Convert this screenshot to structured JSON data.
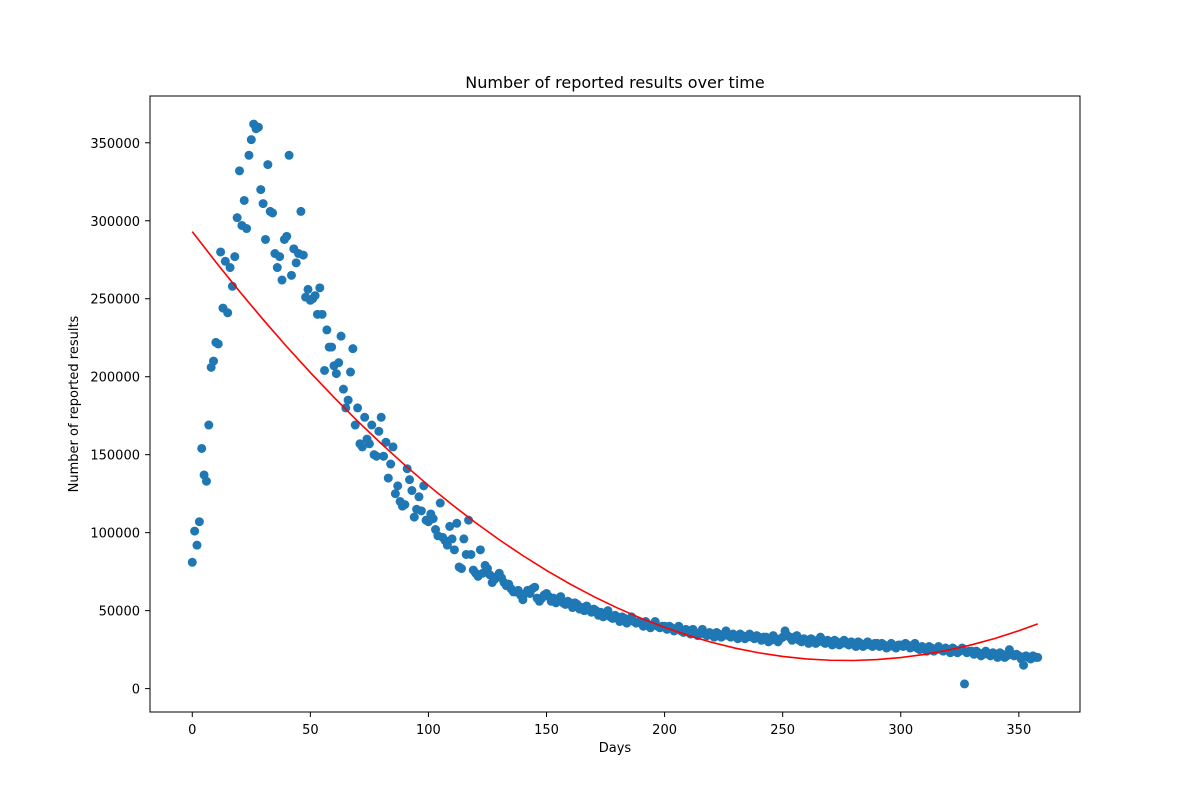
{
  "chart_data": {
    "type": "scatter",
    "title": "Number of reported results over time",
    "xlabel": "Days",
    "ylabel": "Number of reported results",
    "xlim": [
      -17.9,
      375.9
    ],
    "ylim": [
      -15000,
      380000
    ],
    "xticks": [
      0,
      50,
      100,
      150,
      200,
      250,
      300,
      350
    ],
    "yticks": [
      0,
      50000,
      100000,
      150000,
      200000,
      250000,
      300000,
      350000
    ],
    "series": [
      {
        "type": "scatter",
        "color": "#1f77b4",
        "x": [
          0,
          1,
          2,
          3,
          4,
          5,
          6,
          7,
          8,
          9,
          10,
          11,
          12,
          13,
          14,
          15,
          16,
          17,
          18,
          19,
          20,
          21,
          22,
          23,
          24,
          25,
          26,
          27,
          28,
          29,
          30,
          31,
          32,
          33,
          34,
          35,
          36,
          37,
          38,
          39,
          40,
          41,
          42,
          43,
          44,
          45,
          46,
          47,
          48,
          49,
          50,
          51,
          52,
          53,
          54,
          55,
          56,
          57,
          58,
          59,
          60,
          61,
          62,
          63,
          64,
          65,
          66,
          67,
          68,
          69,
          70,
          71,
          72,
          73,
          74,
          75,
          76,
          77,
          78,
          79,
          80,
          81,
          82,
          83,
          84,
          85,
          86,
          87,
          88,
          89,
          90,
          91,
          92,
          93,
          94,
          95,
          96,
          97,
          98,
          99,
          100,
          101,
          102,
          103,
          104,
          105,
          106,
          107,
          108,
          109,
          110,
          111,
          112,
          113,
          114,
          115,
          116,
          117,
          118,
          119,
          120,
          121,
          122,
          123,
          124,
          125,
          126,
          127,
          128,
          129,
          130,
          131,
          132,
          133,
          134,
          135,
          136,
          137,
          138,
          139,
          140,
          141,
          142,
          143,
          144,
          145,
          146,
          147,
          148,
          149,
          150,
          151,
          152,
          153,
          154,
          155,
          156,
          157,
          158,
          159,
          160,
          161,
          162,
          163,
          164,
          165,
          166,
          167,
          168,
          169,
          170,
          171,
          172,
          173,
          174,
          175,
          176,
          177,
          178,
          179,
          180,
          181,
          182,
          183,
          184,
          185,
          186,
          187,
          188,
          189,
          190,
          191,
          192,
          193,
          194,
          195,
          196,
          197,
          198,
          199,
          200,
          201,
          202,
          203,
          204,
          205,
          206,
          207,
          208,
          209,
          210,
          211,
          212,
          213,
          214,
          215,
          216,
          217,
          218,
          219,
          220,
          221,
          222,
          223,
          224,
          225,
          226,
          227,
          228,
          229,
          230,
          231,
          232,
          233,
          234,
          235,
          236,
          237,
          238,
          239,
          240,
          241,
          242,
          243,
          244,
          245,
          246,
          247,
          248,
          249,
          250,
          251,
          252,
          253,
          254,
          255,
          256,
          257,
          258,
          259,
          260,
          261,
          262,
          263,
          264,
          265,
          266,
          267,
          268,
          269,
          270,
          271,
          272,
          273,
          274,
          275,
          276,
          277,
          278,
          279,
          280,
          281,
          282,
          283,
          284,
          285,
          286,
          287,
          288,
          289,
          290,
          291,
          292,
          293,
          294,
          295,
          296,
          297,
          298,
          299,
          300,
          301,
          302,
          303,
          304,
          305,
          306,
          307,
          308,
          309,
          310,
          311,
          312,
          313,
          314,
          315,
          316,
          317,
          318,
          319,
          320,
          321,
          322,
          323,
          324,
          325,
          326,
          327,
          328,
          329,
          330,
          331,
          332,
          333,
          334,
          335,
          336,
          337,
          338,
          339,
          340,
          341,
          342,
          343,
          344,
          345,
          346,
          347,
          348,
          349,
          350,
          351,
          352,
          353,
          354,
          355,
          356,
          357,
          358
        ],
        "values": [
          81000,
          101000,
          92000,
          107000,
          154000,
          137000,
          133000,
          169000,
          206000,
          210000,
          222000,
          221000,
          280000,
          244000,
          274000,
          241000,
          270000,
          258000,
          277000,
          302000,
          332000,
          297000,
          313000,
          295000,
          342000,
          352000,
          362000,
          359000,
          360000,
          320000,
          311000,
          288000,
          336000,
          306000,
          305000,
          279000,
          270000,
          277000,
          262000,
          288000,
          290000,
          342000,
          265000,
          282000,
          273000,
          279000,
          306000,
          278000,
          251000,
          256000,
          249000,
          250000,
          252000,
          240000,
          257000,
          240000,
          204000,
          230000,
          219000,
          219000,
          207000,
          202000,
          209000,
          226000,
          192000,
          180000,
          185000,
          203000,
          218000,
          169000,
          180000,
          157000,
          155000,
          174000,
          160000,
          157000,
          169000,
          150000,
          149000,
          165000,
          174000,
          149000,
          158000,
          135000,
          144000,
          155000,
          125000,
          130000,
          120000,
          117000,
          118000,
          141000,
          134000,
          127000,
          110000,
          115000,
          123000,
          114000,
          130000,
          108000,
          107000,
          112000,
          109000,
          102000,
          98000,
          119000,
          97000,
          95000,
          92000,
          104000,
          96000,
          89000,
          106000,
          78000,
          77000,
          96000,
          86000,
          108000,
          86000,
          76000,
          74000,
          72000,
          89000,
          74000,
          79000,
          77000,
          73000,
          68000,
          70000,
          72000,
          74000,
          71000,
          68000,
          66000,
          67000,
          64000,
          62000,
          62000,
          63000,
          60000,
          57000,
          61000,
          63000,
          61000,
          64000,
          65000,
          58000,
          56000,
          58000,
          60000,
          61000,
          59000,
          56000,
          58000,
          55000,
          57000,
          59000,
          55000,
          54000,
          56000,
          55000,
          52000,
          55000,
          54000,
          51000,
          52000,
          50000,
          53000,
          51000,
          49000,
          51000,
          50000,
          47000,
          49000,
          46000,
          48000,
          50000,
          46000,
          45000,
          47000,
          46000,
          43000,
          46000,
          45000,
          42000,
          44000,
          46000,
          43000,
          42000,
          43000,
          42000,
          40000,
          43000,
          41000,
          39000,
          41000,
          43000,
          40000,
          39000,
          40000,
          40000,
          38000,
          40000,
          39000,
          37000,
          38000,
          40000,
          37000,
          36000,
          38000,
          37000,
          35000,
          38000,
          36000,
          34000,
          36000,
          38000,
          35000,
          34000,
          36000,
          35000,
          33000,
          36000,
          35000,
          33000,
          34000,
          37000,
          34000,
          33000,
          35000,
          34000,
          32000,
          35000,
          34000,
          32000,
          33000,
          35000,
          33000,
          32000,
          34000,
          33000,
          31000,
          33000,
          33000,
          30000,
          31000,
          34000,
          32000,
          30000,
          32000,
          33000,
          37000,
          34000,
          33000,
          31000,
          33000,
          34000,
          31000,
          30000,
          32000,
          31000,
          29000,
          32000,
          31000,
          29000,
          30000,
          33000,
          30000,
          29000,
          31000,
          30000,
          28000,
          31000,
          30000,
          28000,
          29000,
          31000,
          29000,
          28000,
          30000,
          29000,
          27000,
          30000,
          29000,
          27000,
          28000,
          30000,
          28000,
          27000,
          29000,
          29000,
          27000,
          29000,
          28000,
          26000,
          27000,
          29000,
          27000,
          26000,
          28000,
          28000,
          27000,
          29000,
          28000,
          26000,
          27000,
          29000,
          26000,
          25000,
          27000,
          26000,
          24000,
          27000,
          26000,
          24000,
          25000,
          27000,
          25000,
          24000,
          26000,
          25000,
          23000,
          26000,
          25000,
          23000,
          24000,
          26000,
          3000,
          23000,
          24000,
          24000,
          22000,
          24000,
          23000,
          21000,
          22000,
          24000,
          22000,
          21000,
          23000,
          22000,
          20000,
          23000,
          22000,
          20000,
          21000,
          25000,
          22000,
          21000,
          22000,
          21000,
          19000,
          15000,
          21000,
          20000,
          19000,
          21000,
          20000,
          20000
        ]
      },
      {
        "type": "line",
        "color": "#ff0000",
        "x": [
          0,
          10,
          20,
          30,
          40,
          50,
          60,
          70,
          80,
          90,
          100,
          110,
          120,
          130,
          140,
          150,
          160,
          170,
          180,
          190,
          200,
          210,
          220,
          230,
          240,
          250,
          260,
          270,
          280,
          290,
          300,
          310,
          320,
          330,
          340,
          350,
          358
        ],
        "values": [
          293000,
          273500,
          254700,
          236650,
          219310,
          202680,
          186770,
          171570,
          157090,
          143330,
          130280,
          117950,
          106340,
          95450,
          85270,
          75810,
          67060,
          59030,
          51720,
          45130,
          39250,
          34090,
          29640,
          25920,
          22910,
          20610,
          19040,
          18180,
          18030,
          18610,
          19900,
          21900,
          24630,
          28070,
          32220,
          37100,
          41500
        ]
      }
    ]
  }
}
